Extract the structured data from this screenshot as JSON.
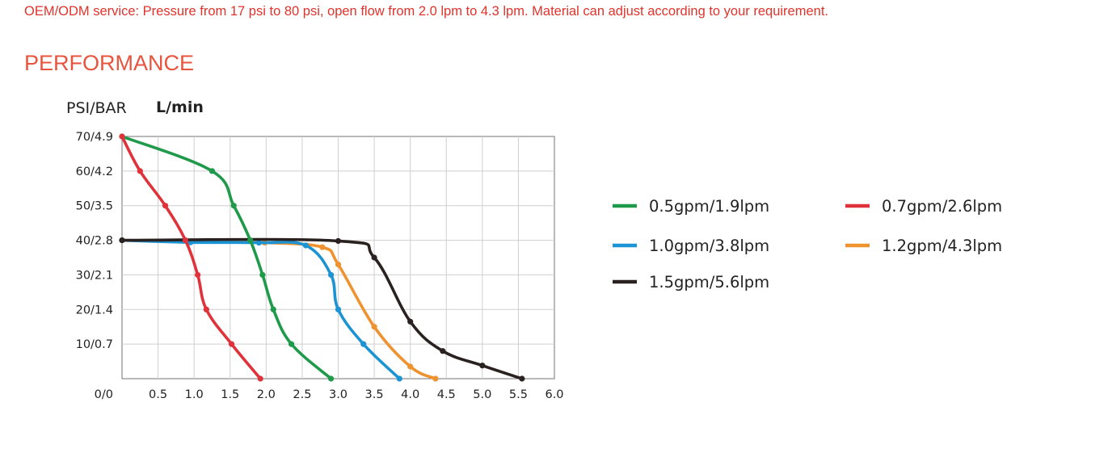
{
  "intro_text": "OEM/ODM service: Pressure from 17 psi to 80 psi, open flow from 2.0 lpm to 4.3 lpm. Material can adjust according to your requirement.",
  "section_title": "PERFORMANCE",
  "colors": {
    "text_accent": "#e0332b",
    "title": "#e8543e"
  },
  "chart_data": {
    "type": "line",
    "y_unit_label": "PSI/BAR",
    "x_unit_label": "L/min",
    "x_ticks": [
      "0.5",
      "1.0",
      "1.5",
      "2.0",
      "2.5",
      "3.0",
      "3.5",
      "4.0",
      "4.5",
      "5.0",
      "5.5",
      "6.0"
    ],
    "y_ticks": [
      "0/0",
      "10/0.7",
      "20/1.4",
      "30/2.1",
      "40/2.8",
      "50/3.5",
      "60/4.2",
      "70/4.9"
    ],
    "xlim": [
      0,
      6.0
    ],
    "ylim": [
      0,
      70
    ],
    "grid": true,
    "legend_position": "right",
    "series": [
      {
        "name": "0.5gpm/1.9lpm",
        "color": "#1e9a4a",
        "points": [
          [
            0,
            70
          ],
          [
            1.25,
            60
          ],
          [
            1.55,
            50
          ],
          [
            1.78,
            40
          ],
          [
            1.95,
            30
          ],
          [
            2.1,
            20
          ],
          [
            2.35,
            10
          ],
          [
            2.9,
            0
          ]
        ]
      },
      {
        "name": "0.7gpm/2.6lpm",
        "color": "#e0323a",
        "points": [
          [
            0,
            70
          ],
          [
            0.25,
            60
          ],
          [
            0.6,
            50
          ],
          [
            0.88,
            40
          ],
          [
            1.05,
            30
          ],
          [
            1.17,
            20
          ],
          [
            1.52,
            10
          ],
          [
            1.92,
            0
          ]
        ]
      },
      {
        "name": "1.0gpm/3.8lpm",
        "color": "#1c93d2",
        "points": [
          [
            0,
            40
          ],
          [
            0.95,
            39.4
          ],
          [
            1.9,
            39.3
          ],
          [
            2.55,
            38.5
          ],
          [
            2.9,
            30
          ],
          [
            3.0,
            20
          ],
          [
            3.35,
            10
          ],
          [
            3.85,
            0
          ]
        ]
      },
      {
        "name": "1.2gpm/4.3lpm",
        "color": "#ef9230",
        "points": [
          [
            0,
            40
          ],
          [
            0.95,
            39.5
          ],
          [
            1.98,
            39.3
          ],
          [
            2.78,
            38
          ],
          [
            3.0,
            33
          ],
          [
            3.5,
            15
          ],
          [
            4.0,
            3.5
          ],
          [
            4.35,
            0
          ]
        ]
      },
      {
        "name": "1.5gpm/5.6lpm",
        "color": "#2a2220",
        "points": [
          [
            0,
            40
          ],
          [
            3.0,
            39.8
          ],
          [
            3.5,
            35
          ],
          [
            4.0,
            16.5
          ],
          [
            4.45,
            8
          ],
          [
            5.0,
            3.8
          ],
          [
            5.55,
            0
          ]
        ]
      }
    ]
  }
}
